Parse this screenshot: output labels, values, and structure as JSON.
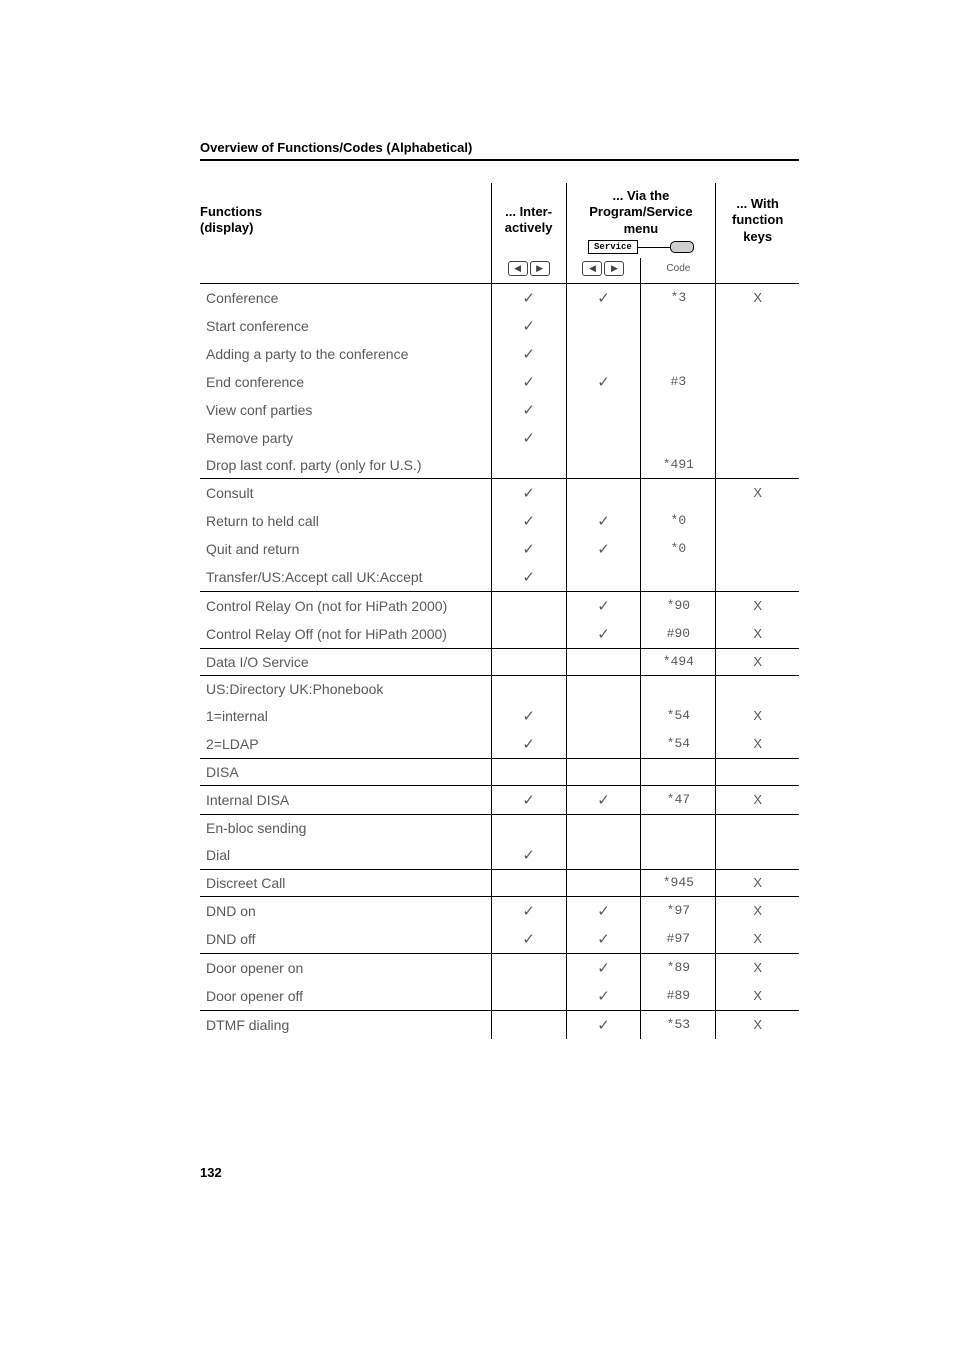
{
  "section_title": "Overview of Functions/Codes (Alphabetical)",
  "page_number": "132",
  "header": {
    "functions_label": "Functions\n(display)",
    "inter_label": "... Inter-\nactively",
    "via_label": "... Via the\nProgram/Service\nmenu",
    "with_label": "... With\nfunction\nkeys",
    "service_text": "Service",
    "code_label": "Code"
  },
  "rows": [
    {
      "name": "Conference",
      "inter": "✓",
      "ps": "✓",
      "code": "*3",
      "fk": "X",
      "top": true
    },
    {
      "name": "Start conference",
      "inter": "✓",
      "ps": "",
      "code": "",
      "fk": ""
    },
    {
      "name": "Adding a party to the conference",
      "inter": "✓",
      "ps": "",
      "code": "",
      "fk": ""
    },
    {
      "name": "End conference",
      "inter": "✓",
      "ps": "✓",
      "code": "#3",
      "fk": ""
    },
    {
      "name": "View conf parties",
      "inter": "✓",
      "ps": "",
      "code": "",
      "fk": ""
    },
    {
      "name": "Remove party",
      "inter": "✓",
      "ps": "",
      "code": "",
      "fk": ""
    },
    {
      "name": "Drop last conf. party (only for U.S.)",
      "inter": "",
      "ps": "",
      "code": "*491",
      "fk": ""
    },
    {
      "name": "Consult",
      "inter": "✓",
      "ps": "",
      "code": "",
      "fk": "X",
      "top": true
    },
    {
      "name": "Return to held call",
      "inter": "✓",
      "ps": "✓",
      "code": "*0",
      "fk": ""
    },
    {
      "name": "Quit and return",
      "inter": "✓",
      "ps": "✓",
      "code": "*0",
      "fk": ""
    },
    {
      "name": "Transfer/US:Accept call UK:Accept",
      "inter": "✓",
      "ps": "",
      "code": "",
      "fk": ""
    },
    {
      "name": "Control Relay On (not for HiPath 2000)",
      "inter": "",
      "ps": "✓",
      "code": "*90",
      "fk": "X",
      "top": true
    },
    {
      "name": "Control Relay Off (not for HiPath 2000)",
      "inter": "",
      "ps": "✓",
      "code": "#90",
      "fk": "X"
    },
    {
      "name": "Data I/O Service",
      "inter": "",
      "ps": "",
      "code": "*494",
      "fk": "X",
      "top": true
    },
    {
      "name": "US:Directory UK:Phonebook",
      "inter": "",
      "ps": "",
      "code": "",
      "fk": "",
      "top": true
    },
    {
      "name": "1=internal",
      "inter": "✓",
      "ps": "",
      "code": "*54",
      "fk": "X"
    },
    {
      "name": "2=LDAP",
      "inter": "✓",
      "ps": "",
      "code": "*54",
      "fk": "X"
    },
    {
      "name": "DISA",
      "inter": "",
      "ps": "",
      "code": "",
      "fk": "",
      "top": true
    },
    {
      "name": "Internal DISA",
      "inter": "✓",
      "ps": "✓",
      "code": "*47",
      "fk": "X",
      "top": true
    },
    {
      "name": "En-bloc sending",
      "inter": "",
      "ps": "",
      "code": "",
      "fk": "",
      "top": true
    },
    {
      "name": "Dial",
      "inter": "✓",
      "ps": "",
      "code": "",
      "fk": ""
    },
    {
      "name": "Discreet Call",
      "inter": "",
      "ps": "",
      "code": "*945",
      "fk": "X",
      "top": true
    },
    {
      "name": "DND on",
      "inter": "✓",
      "ps": "✓",
      "code": "*97",
      "fk": "X",
      "top": true
    },
    {
      "name": "DND off",
      "inter": "✓",
      "ps": "✓",
      "code": "#97",
      "fk": "X"
    },
    {
      "name": "Door opener on",
      "inter": "",
      "ps": "✓",
      "code": "*89",
      "fk": "X",
      "top": true
    },
    {
      "name": "Door opener off",
      "inter": "",
      "ps": "✓",
      "code": "#89",
      "fk": "X"
    },
    {
      "name": "DTMF dialing",
      "inter": "",
      "ps": "✓",
      "code": "*53",
      "fk": "X",
      "top": true
    }
  ],
  "icons": {
    "left_tri": "◀",
    "right_tri": "▶"
  }
}
